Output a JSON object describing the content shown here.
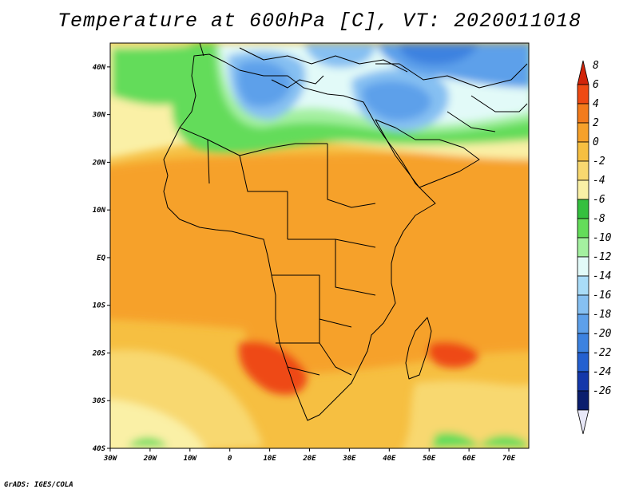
{
  "title": "Temperature at 600hPa [C], VT: 2020011018",
  "credit": "GrADS: IGES/COLA",
  "chart_data": {
    "type": "heatmap",
    "variable": "Temperature",
    "level": "600hPa",
    "units": "C",
    "valid_time": "2020011018",
    "x_ticks": [
      "30W",
      "20W",
      "10W",
      "0",
      "10E",
      "20E",
      "30E",
      "40E",
      "50E",
      "60E",
      "70E"
    ],
    "x_values": [
      -30,
      -20,
      -10,
      0,
      10,
      20,
      30,
      40,
      50,
      60,
      70
    ],
    "y_ticks": [
      "40N",
      "30N",
      "20N",
      "10N",
      "EQ",
      "10S",
      "20S",
      "30S",
      "40S"
    ],
    "y_values": [
      40,
      30,
      20,
      10,
      0,
      -10,
      -20,
      -30,
      -40
    ],
    "xlim": [
      -30,
      75
    ],
    "ylim": [
      -40,
      45
    ],
    "colorbar": {
      "labels": [
        "8",
        "6",
        "4",
        "2",
        "0",
        "-2",
        "-4",
        "-6",
        "-8",
        "-10",
        "-12",
        "-14",
        "-16",
        "-18",
        "-20",
        "-22",
        "-24",
        "-26"
      ],
      "values": [
        8,
        6,
        4,
        2,
        0,
        -2,
        -4,
        -6,
        -8,
        -10,
        -12,
        -14,
        -16,
        -18,
        -20,
        -22,
        -24,
        -26
      ],
      "colors": [
        "#d1240a",
        "#ee4a14",
        "#f37b1c",
        "#f6a12a",
        "#f6bf41",
        "#f8d870",
        "#faf0a6",
        "#35c03f",
        "#64dc5a",
        "#a4f0a0",
        "#e2faf8",
        "#a9dcf8",
        "#86c0f2",
        "#5da0ea",
        "#3c82e0",
        "#2460d0",
        "#1438aa",
        "#0a1e6e",
        "#e8e8f8"
      ]
    },
    "regions": [
      {
        "name": "north-africa-mediterranean",
        "approx_lon": [
          5,
          40
        ],
        "approx_lat": [
          30,
          40
        ],
        "value": -18
      },
      {
        "name": "middle-east",
        "approx_lon": [
          35,
          55
        ],
        "approx_lat": [
          30,
          38
        ],
        "value": -18
      },
      {
        "name": "sahara-north",
        "approx_lon": [
          -5,
          35
        ],
        "approx_lat": [
          22,
          30
        ],
        "value": -6
      },
      {
        "name": "tropical-belt",
        "approx_lon": [
          -30,
          75
        ],
        "approx_lat": [
          -10,
          15
        ],
        "value": 3
      },
      {
        "name": "southern-africa-warm",
        "approx_lon": [
          15,
          25
        ],
        "approx_lat": [
          -28,
          -18
        ],
        "value": 6
      },
      {
        "name": "madagascar-east",
        "approx_lon": [
          55,
          62
        ],
        "approx_lat": [
          -24,
          -18
        ],
        "value": 6
      },
      {
        "name": "south-atlantic",
        "approx_lon": [
          -30,
          10
        ],
        "approx_lat": [
          -40,
          -20
        ],
        "value": -2
      }
    ]
  }
}
